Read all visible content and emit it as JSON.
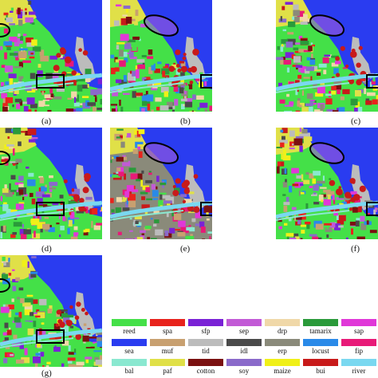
{
  "panels": [
    {
      "id": "a",
      "label": "(a)"
    },
    {
      "id": "b",
      "label": "(b)"
    },
    {
      "id": "c",
      "label": "(c)"
    },
    {
      "id": "d",
      "label": "(d)"
    },
    {
      "id": "e",
      "label": "(e)"
    },
    {
      "id": "f",
      "label": "(f)"
    },
    {
      "id": "g",
      "label": "(g)"
    }
  ],
  "legend": {
    "rows": [
      [
        {
          "name": "reed",
          "color": "#44e048"
        },
        {
          "name": "spa",
          "color": "#e8231c"
        },
        {
          "name": "sfp",
          "color": "#7a22d6"
        },
        {
          "name": "sep",
          "color": "#c25ad6"
        },
        {
          "name": "drp",
          "color": "#f0d8a8"
        },
        {
          "name": "tamarix",
          "color": "#2a9a3a"
        },
        {
          "name": "sap",
          "color": "#e038d8"
        }
      ],
      [
        {
          "name": "sea",
          "color": "#2a3cf0"
        },
        {
          "name": "muf",
          "color": "#c8a070"
        },
        {
          "name": "tid",
          "color": "#bcbcbc"
        },
        {
          "name": "idl",
          "color": "#4a4a4a"
        },
        {
          "name": "erp",
          "color": "#8a8a7a"
        },
        {
          "name": "locust",
          "color": "#2a8ae8"
        },
        {
          "name": "fip",
          "color": "#e81a78"
        }
      ],
      [
        {
          "name": "bal",
          "color": "#8ae8d0"
        },
        {
          "name": "paf",
          "color": "#e0e048"
        },
        {
          "name": "cotton",
          "color": "#7a1010"
        },
        {
          "name": "soy",
          "color": "#8a6aca"
        },
        {
          "name": "maize",
          "color": "#f0f018"
        },
        {
          "name": "bui",
          "color": "#c81a1a"
        },
        {
          "name": "river",
          "color": "#7ad8f0"
        }
      ]
    ]
  }
}
